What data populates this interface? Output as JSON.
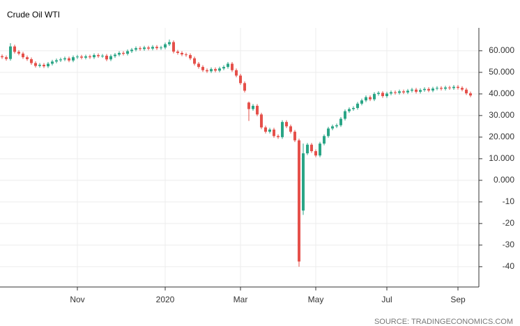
{
  "chart_data": {
    "type": "candlestick",
    "title": "Crude Oil WTI",
    "source": "SOURCE: TRADINGECONOMICS.COM",
    "up_color": "#2aa586",
    "down_color": "#e5504a",
    "grid": true,
    "ylim": [
      -49.4,
      70.6
    ],
    "yticks": [
      {
        "value": 60,
        "label": "60.000"
      },
      {
        "value": 50,
        "label": "50.000"
      },
      {
        "value": 40,
        "label": "40.000"
      },
      {
        "value": 30,
        "label": "30.000"
      },
      {
        "value": 20,
        "label": "20.000"
      },
      {
        "value": 10,
        "label": "10.000"
      },
      {
        "value": 0,
        "label": "0.000"
      },
      -10,
      -20,
      -30,
      -40
    ],
    "categories": [
      null,
      null,
      null,
      null,
      null,
      null,
      null,
      null,
      null,
      null,
      null,
      null,
      null,
      null,
      null,
      null,
      null,
      null,
      "Nov",
      null,
      null,
      null,
      null,
      null,
      null,
      null,
      null,
      null,
      null,
      null,
      null,
      null,
      null,
      null,
      null,
      null,
      null,
      null,
      null,
      "2020",
      null,
      null,
      null,
      null,
      null,
      null,
      null,
      null,
      null,
      null,
      null,
      null,
      null,
      null,
      null,
      null,
      null,
      "Mar",
      null,
      null,
      null,
      null,
      null,
      null,
      null,
      null,
      null,
      null,
      null,
      null,
      null,
      null,
      null,
      null,
      null,
      "May",
      null,
      null,
      null,
      null,
      null,
      null,
      null,
      null,
      null,
      null,
      null,
      null,
      null,
      null,
      null,
      null,
      "Jul",
      null,
      null,
      null,
      null,
      null,
      null,
      null,
      null,
      null,
      null,
      null,
      null,
      null,
      null,
      null,
      null,
      "Sep",
      null,
      null,
      null
    ],
    "open": [
      57.5,
      57.0,
      56.2,
      62.0,
      59.5,
      58.7,
      57.0,
      56.1,
      54.3,
      53.0,
      53.5,
      52.8,
      54.0,
      55.0,
      55.6,
      56.0,
      56.5,
      55.5,
      57.0,
      57.3,
      56.8,
      57.4,
      57.0,
      58.0,
      57.5,
      57.7,
      56.0,
      57.5,
      58.2,
      59.0,
      58.6,
      59.8,
      60.5,
      61.2,
      60.8,
      61.5,
      61.0,
      61.8,
      61.2,
      61.5,
      63.0,
      64.0,
      59.6,
      59.0,
      58.3,
      58.0,
      56.5,
      54.0,
      52.5,
      51.0,
      50.5,
      51.5,
      50.8,
      51.8,
      52.5,
      54.0,
      51.0,
      48.5,
      45.0,
      36.0,
      33.0,
      34.5,
      30.5,
      24.5,
      22.5,
      23.5,
      20.5,
      20.0,
      27.0,
      25.0,
      22.5,
      18.5,
      -14.0,
      12.5,
      16.5,
      13.5,
      11.5,
      17.0,
      20.5,
      24.0,
      25.0,
      25.5,
      28.5,
      32.0,
      33.0,
      33.5,
      35.5,
      37.0,
      38.5,
      37.5,
      40.0,
      40.5,
      39.0,
      40.2,
      40.8,
      40.5,
      41.2,
      40.7,
      41.5,
      42.0,
      41.0,
      41.8,
      42.3,
      41.6,
      42.5,
      42.8,
      42.4,
      43.0,
      42.7,
      43.3,
      42.8,
      42.0,
      40.3
    ],
    "high": [
      58.3,
      57.8,
      63.5,
      62.8,
      60.3,
      59.5,
      57.8,
      56.9,
      55.1,
      54.3,
      54.3,
      54.8,
      55.8,
      56.4,
      56.8,
      57.3,
      57.3,
      57.8,
      58.1,
      58.1,
      58.2,
      58.2,
      58.8,
      58.8,
      58.5,
      58.5,
      58.3,
      59.0,
      59.8,
      59.8,
      60.6,
      61.3,
      62.0,
      62.0,
      62.3,
      62.3,
      62.6,
      62.6,
      62.3,
      63.8,
      65.2,
      64.8,
      60.4,
      59.8,
      59.1,
      58.8,
      57.3,
      54.8,
      53.3,
      51.8,
      52.3,
      52.3,
      52.6,
      53.3,
      54.8,
      54.8,
      51.8,
      49.3,
      45.8,
      36.5,
      35.3,
      35.3,
      31.3,
      25.3,
      24.3,
      24.3,
      21.3,
      27.8,
      27.8,
      25.8,
      23.3,
      19.3,
      17.0,
      17.3,
      17.3,
      14.3,
      17.8,
      21.3,
      24.8,
      25.8,
      26.3,
      29.3,
      32.8,
      33.8,
      34.3,
      36.3,
      37.8,
      39.3,
      39.3,
      40.8,
      41.3,
      41.3,
      41.0,
      41.6,
      41.6,
      42.0,
      42.0,
      42.3,
      42.8,
      42.8,
      42.6,
      43.1,
      43.1,
      43.3,
      43.6,
      43.6,
      43.8,
      43.8,
      44.1,
      44.1,
      43.6,
      42.8,
      41.1
    ],
    "low": [
      56.2,
      55.4,
      55.4,
      58.7,
      57.9,
      56.2,
      55.3,
      53.5,
      52.2,
      52.2,
      52.0,
      52.0,
      53.2,
      54.2,
      54.8,
      55.2,
      54.7,
      54.7,
      56.2,
      56.0,
      56.0,
      56.2,
      56.2,
      56.7,
      56.7,
      55.2,
      55.2,
      56.7,
      57.4,
      57.8,
      57.8,
      59.0,
      59.7,
      60.0,
      60.0,
      60.2,
      60.2,
      60.4,
      60.4,
      60.7,
      62.2,
      58.8,
      58.2,
      57.5,
      57.2,
      55.7,
      53.2,
      51.7,
      50.2,
      49.7,
      49.7,
      50.0,
      50.0,
      51.0,
      51.7,
      50.2,
      47.7,
      44.2,
      40.7,
      27.5,
      32.2,
      29.7,
      23.7,
      21.7,
      21.7,
      19.7,
      19.2,
      19.2,
      24.2,
      21.7,
      17.7,
      -40.0,
      -16.0,
      11.7,
      12.7,
      10.7,
      10.7,
      16.2,
      19.7,
      23.2,
      24.2,
      24.7,
      27.7,
      31.2,
      32.2,
      32.7,
      34.7,
      36.2,
      36.7,
      36.7,
      39.2,
      38.2,
      38.2,
      39.4,
      39.7,
      39.7,
      39.9,
      39.9,
      40.7,
      40.2,
      40.2,
      41.0,
      40.8,
      40.8,
      41.7,
      41.6,
      41.6,
      41.9,
      41.9,
      42.0,
      41.2,
      39.5,
      38.5
    ],
    "close": [
      57.0,
      56.2,
      62.0,
      59.5,
      58.7,
      57.0,
      56.1,
      54.3,
      53.0,
      53.5,
      52.8,
      54.0,
      55.0,
      55.6,
      56.0,
      56.5,
      55.5,
      57.0,
      57.3,
      56.8,
      57.4,
      57.0,
      58.0,
      57.5,
      57.7,
      56.0,
      57.5,
      58.2,
      59.0,
      58.6,
      59.8,
      60.5,
      61.2,
      60.8,
      61.5,
      61.0,
      61.8,
      61.2,
      61.5,
      63.0,
      64.0,
      59.6,
      59.0,
      58.3,
      58.0,
      56.5,
      54.0,
      52.5,
      51.0,
      50.5,
      51.5,
      50.8,
      51.8,
      52.5,
      54.0,
      51.0,
      48.5,
      45.0,
      41.5,
      33.0,
      34.5,
      30.5,
      24.5,
      22.5,
      23.5,
      20.5,
      20.0,
      27.0,
      25.0,
      22.5,
      18.5,
      -37.6,
      12.5,
      16.5,
      13.5,
      11.5,
      17.0,
      20.5,
      24.0,
      25.0,
      25.5,
      28.5,
      32.0,
      33.0,
      33.5,
      35.5,
      37.0,
      38.5,
      37.5,
      40.0,
      40.5,
      39.0,
      40.2,
      40.8,
      40.5,
      41.2,
      40.7,
      41.5,
      42.0,
      41.0,
      41.8,
      42.3,
      41.6,
      42.5,
      42.8,
      42.4,
      43.0,
      42.7,
      43.3,
      42.8,
      42.0,
      40.3,
      39.3
    ]
  }
}
